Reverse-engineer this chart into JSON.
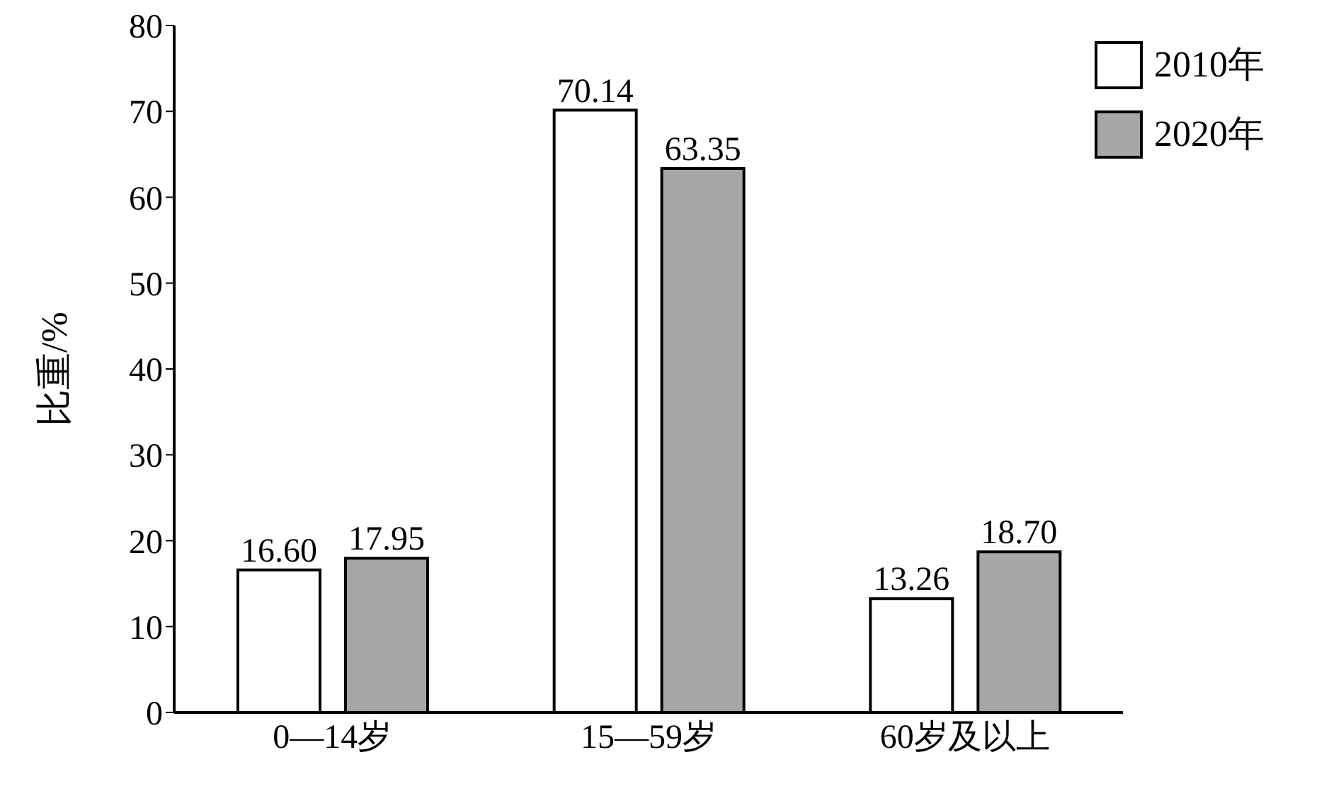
{
  "chart_data": {
    "type": "bar",
    "ylabel": "比重/%",
    "categories": [
      "0—14岁",
      "15—59岁",
      "60岁及以上"
    ],
    "series": [
      {
        "name": "2010年",
        "color": "#ffffff",
        "values": [
          16.6,
          70.14,
          13.26
        ]
      },
      {
        "name": "2020年",
        "color": "#a6a6a6",
        "values": [
          17.95,
          63.35,
          18.7
        ]
      }
    ],
    "value_labels": [
      [
        "16.60",
        "70.14",
        "13.26"
      ],
      [
        "17.95",
        "63.35",
        "18.70"
      ]
    ],
    "ylim": [
      0,
      80
    ],
    "yticks": [
      0,
      10,
      20,
      30,
      40,
      50,
      60,
      70,
      80
    ],
    "grid": false,
    "legend": "top right"
  }
}
